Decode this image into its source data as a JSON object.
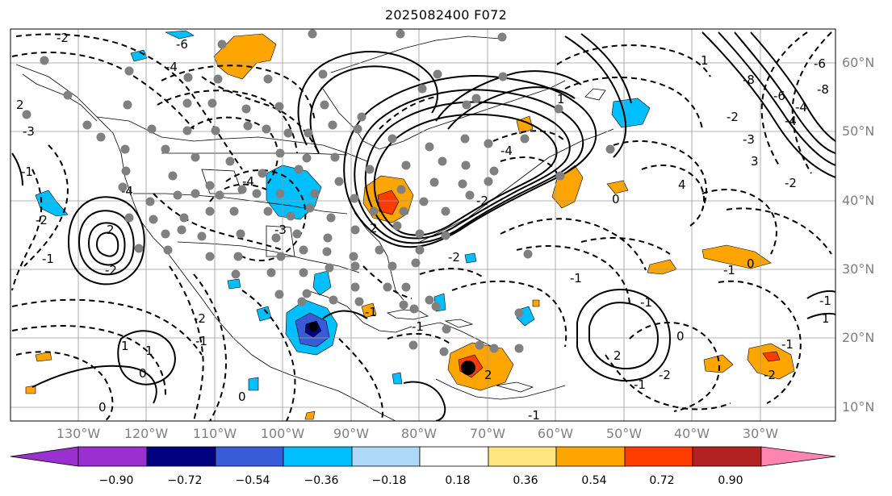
{
  "title": "2025082400 F072",
  "lat_labels": [
    "60°N",
    "50°N",
    "40°N",
    "30°N",
    "20°N",
    "10°N"
  ],
  "lon_labels": [
    "130°W",
    "120°W",
    "110°W",
    "100°W",
    "90°W",
    "80°W",
    "70°W",
    "60°W",
    "50°W",
    "40°W",
    "30°W"
  ],
  "colorbar": {
    "ticks": [
      "−0.90",
      "−0.72",
      "−0.54",
      "−0.36",
      "−0.18",
      "0.18",
      "0.36",
      "0.54",
      "0.72",
      "0.90"
    ],
    "colors": [
      "#9b30d0",
      "#000080",
      "#3a5bd8",
      "#00bfff",
      "#add8f6",
      "#ffffff",
      "#ffe680",
      "#ffa500",
      "#ff3c00",
      "#b22222",
      "#ff85b0"
    ]
  },
  "contour_labels": [
    "-2",
    "-6",
    "-4",
    "2",
    "-4",
    "2",
    "-2",
    "-1",
    "1",
    "0",
    "1",
    "0",
    "-1",
    "-2",
    "2",
    "-3",
    "-4",
    "4",
    "-4",
    "0",
    "-2",
    "-1",
    "0",
    "-1",
    "-2",
    "2",
    "-1",
    "0",
    "-1",
    "-1",
    "0",
    "-1",
    "2",
    "-1",
    "-2",
    "1",
    "-2",
    "-1",
    "-4",
    "-6",
    "-8",
    "-8",
    "-6",
    "-4",
    "3",
    "-2",
    "-3",
    "-2",
    "-1",
    "1",
    "1",
    "-1",
    "-2",
    "-3"
  ]
}
